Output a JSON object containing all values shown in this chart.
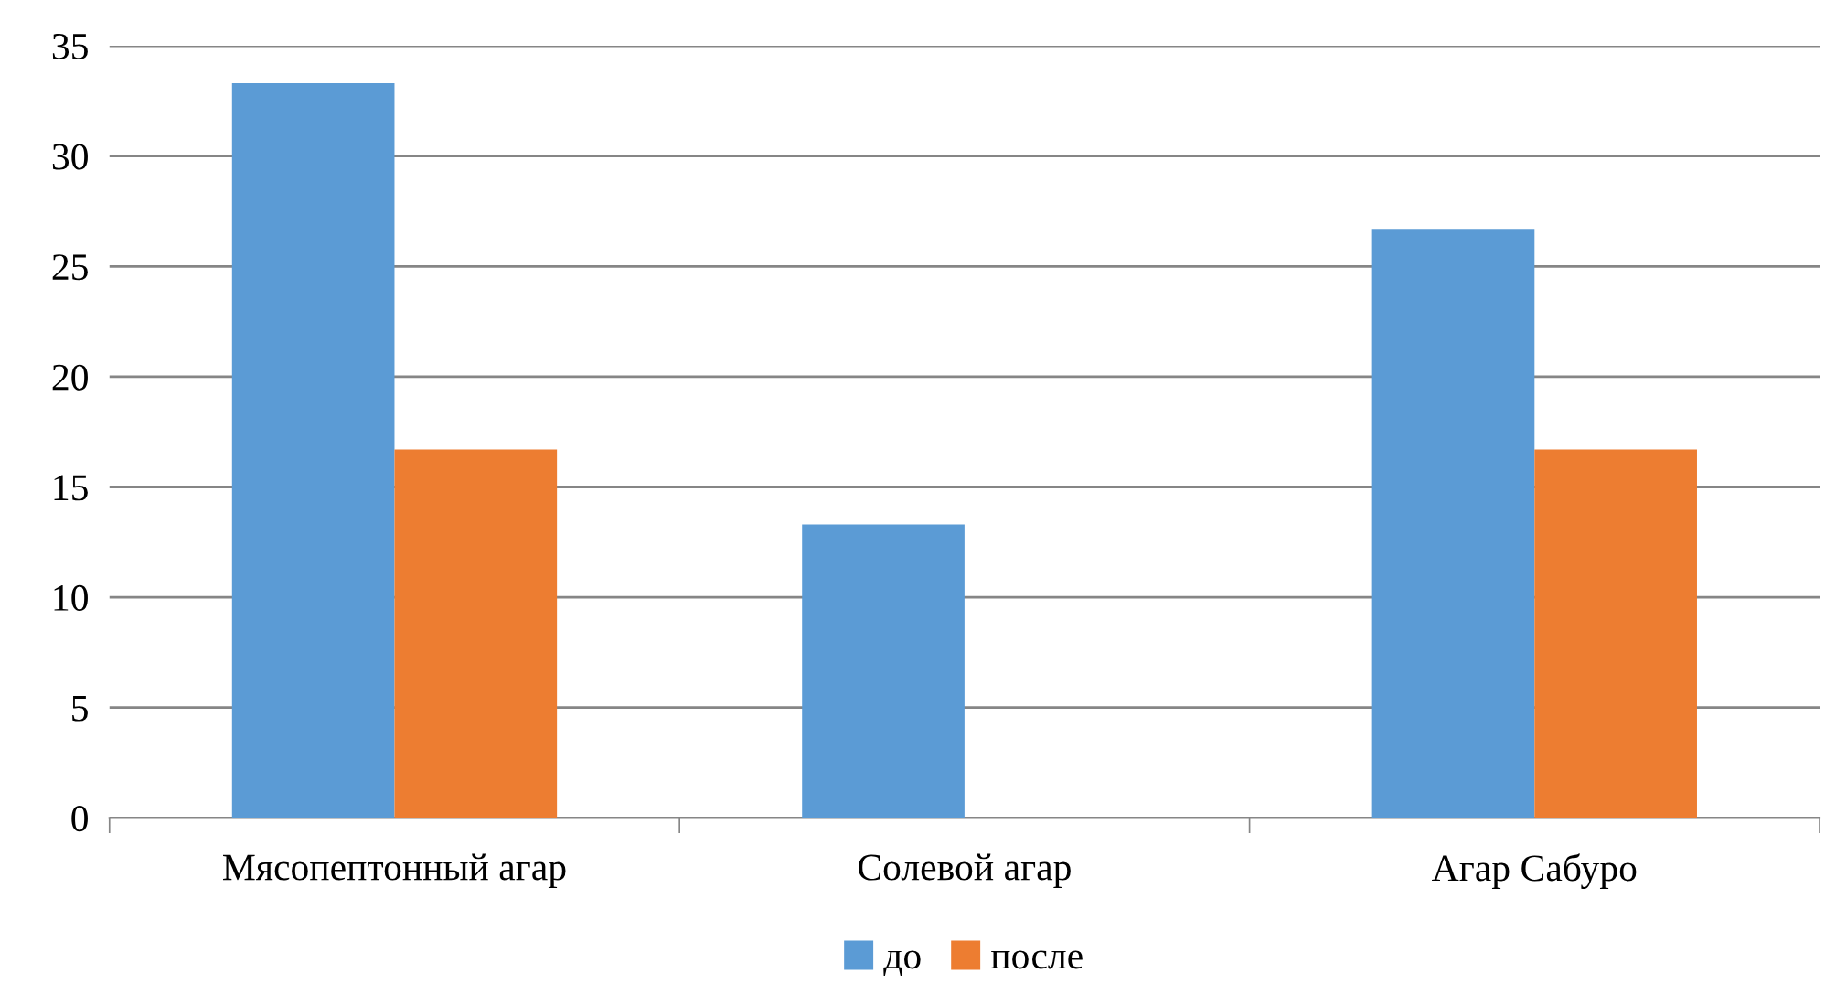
{
  "chart_data": {
    "type": "bar",
    "categories": [
      "Мясопептонный агар",
      "Солевой агар",
      "Агар Сабуро"
    ],
    "series": [
      {
        "name": "до",
        "color": "#5b9bd5",
        "values": [
          33.3,
          13.3,
          26.7
        ]
      },
      {
        "name": "после",
        "color": "#ed7d31",
        "values": [
          16.7,
          0,
          16.7
        ]
      }
    ],
    "ylim": [
      0,
      35
    ],
    "yticks": [
      0,
      5,
      10,
      15,
      20,
      25,
      30,
      35
    ],
    "grid": "y",
    "legend": "bottom"
  }
}
